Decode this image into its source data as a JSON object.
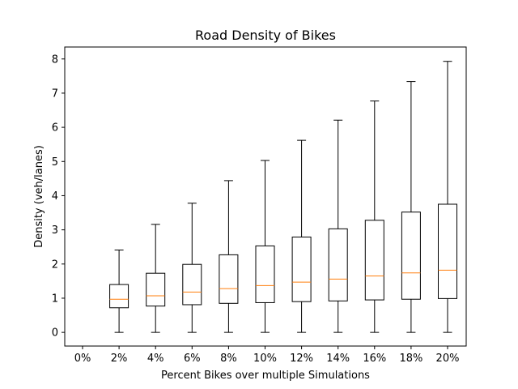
{
  "chart_data": {
    "type": "box",
    "title": "Road Density of Bikes",
    "xlabel": "Percent Bikes over multiple Simulations",
    "ylabel": "Density (veh/lanes)",
    "ylim": [
      -0.4,
      8.35
    ],
    "yticks": [
      0,
      1,
      2,
      3,
      4,
      5,
      6,
      7,
      8
    ],
    "categories": [
      "0%",
      "2%",
      "4%",
      "6%",
      "8%",
      "10%",
      "12%",
      "14%",
      "16%",
      "18%",
      "20%"
    ],
    "boxes": [
      null,
      {
        "whisker_low": 0,
        "q1": 0.72,
        "median": 0.97,
        "q3": 1.4,
        "whisker_high": 2.41
      },
      {
        "whisker_low": 0,
        "q1": 0.77,
        "median": 1.07,
        "q3": 1.73,
        "whisker_high": 3.16
      },
      {
        "whisker_low": 0,
        "q1": 0.81,
        "median": 1.18,
        "q3": 1.99,
        "whisker_high": 3.78
      },
      {
        "whisker_low": 0,
        "q1": 0.85,
        "median": 1.28,
        "q3": 2.27,
        "whisker_high": 4.44
      },
      {
        "whisker_low": 0,
        "q1": 0.87,
        "median": 1.37,
        "q3": 2.53,
        "whisker_high": 5.03
      },
      {
        "whisker_low": 0,
        "q1": 0.9,
        "median": 1.47,
        "q3": 2.79,
        "whisker_high": 5.62
      },
      {
        "whisker_low": 0,
        "q1": 0.92,
        "median": 1.56,
        "q3": 3.03,
        "whisker_high": 6.21
      },
      {
        "whisker_low": 0,
        "q1": 0.95,
        "median": 1.65,
        "q3": 3.28,
        "whisker_high": 6.77
      },
      {
        "whisker_low": 0,
        "q1": 0.97,
        "median": 1.74,
        "q3": 3.52,
        "whisker_high": 7.34
      },
      {
        "whisker_low": 0,
        "q1": 0.99,
        "median": 1.82,
        "q3": 3.75,
        "whisker_high": 7.93
      }
    ],
    "grid": false,
    "colors": {
      "box": "#000000",
      "median": "#ff7f0e"
    }
  }
}
